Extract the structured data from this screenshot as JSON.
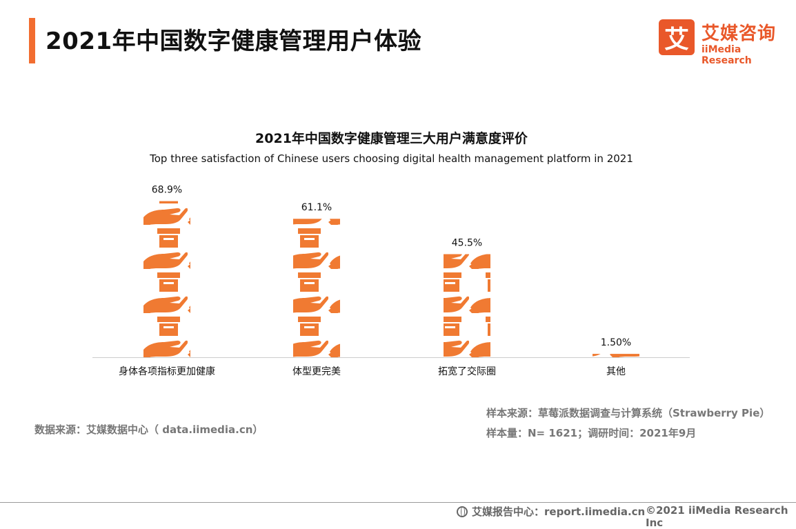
{
  "header": {
    "title": "2021年中国数字健康管理用户体验",
    "brand_mark": "艾",
    "brand_cn": "艾媒咨询",
    "brand_en": "iiMedia Research",
    "accent_color": "#f26d30"
  },
  "chart_data": {
    "type": "bar",
    "style": "pictograph",
    "icon": "hand-holding-box-icon",
    "title": "2021年中国数字健康管理三大用户满意度评价",
    "subtitle": "Top three satisfaction of Chinese users choosing digital health management platform in 2021",
    "categories": [
      "身体各项指标更加健康",
      "体型更完美",
      "拓宽了交际圈",
      "其他"
    ],
    "values": [
      68.9,
      61.1,
      45.5,
      1.5
    ],
    "value_labels": [
      "68.9%",
      "61.1%",
      "45.5%",
      "1.50%"
    ],
    "unit": "%",
    "ylim": [
      0,
      70
    ],
    "grid": false,
    "legend": "none",
    "bar_color": "#f07a32"
  },
  "sources": {
    "left": "数据来源：艾媒数据中心（ data.iimedia.cn）",
    "sample_source": "样本来源：草莓派数据调查与计算系统（Strawberry Pie）",
    "sample_size": "样本量：N= 1621；调研时间：2021年9月"
  },
  "footer": {
    "report": "艾媒报告中心：report.iimedia.cn",
    "copyright": "©2021  iiMedia Research  Inc"
  }
}
